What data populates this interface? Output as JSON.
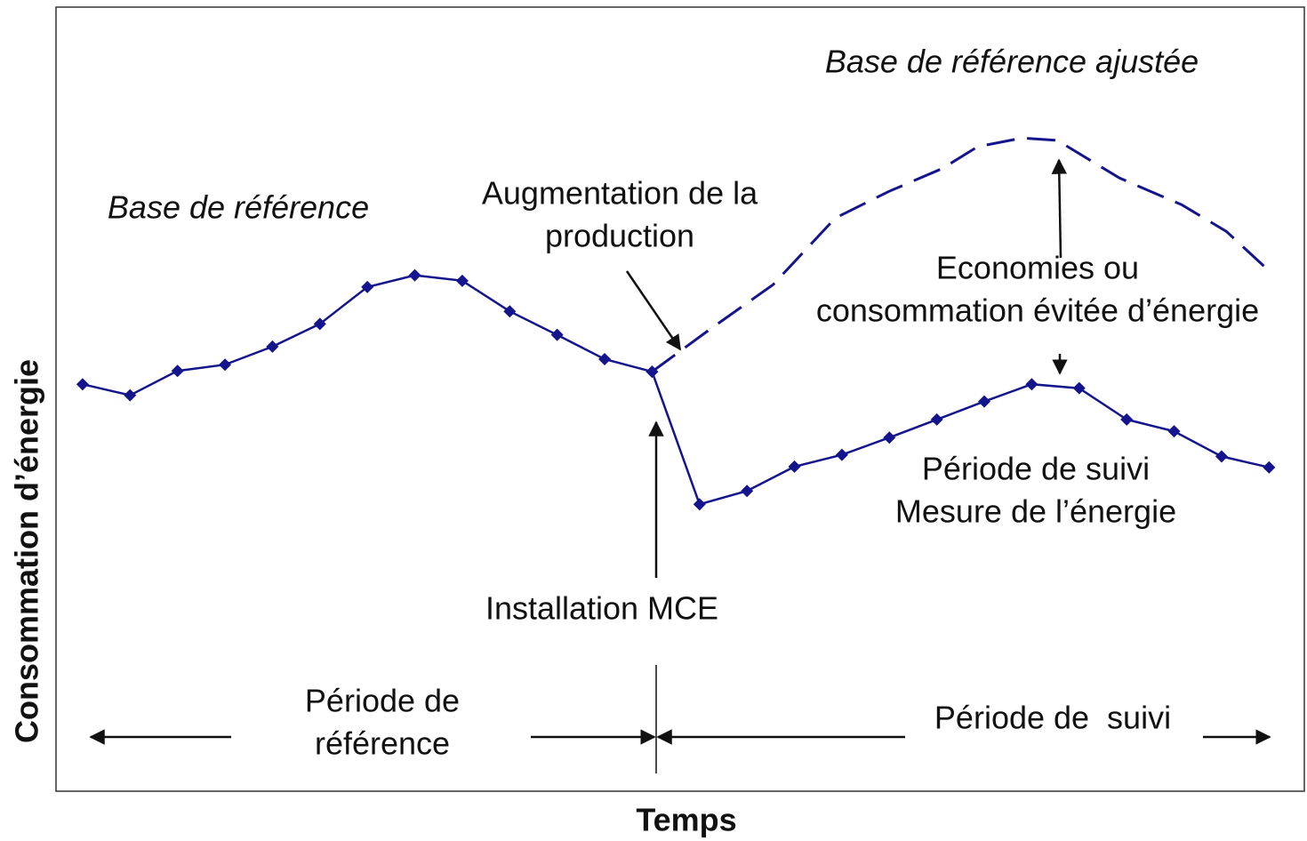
{
  "chart_data": {
    "type": "line",
    "x_label": "Temps",
    "y_label": "Consommation d’énergie",
    "xlim": [
      -0.56,
      25.8
    ],
    "ylim": [
      0,
      100
    ],
    "series": [
      {
        "color": "#14148c",
        "style": "solid",
        "markers": true,
        "x": [
          0,
          1,
          2,
          3,
          4,
          5,
          6,
          7,
          8,
          9,
          10,
          11,
          12
        ],
        "values": [
          51.9,
          50.5,
          53.6,
          54.4,
          56.7,
          59.6,
          64.3,
          65.8,
          65.1,
          61.2,
          58.2,
          55.1,
          53.5
        ]
      },
      {
        "color": "#14148c",
        "style": "solid",
        "markers": true,
        "x": [
          12,
          13,
          14,
          15,
          16,
          17,
          18,
          19,
          20,
          21,
          22,
          23,
          24,
          25
        ],
        "values": [
          53.5,
          36.6,
          38.3,
          41.4,
          42.9,
          45.1,
          47.4,
          49.7,
          51.9,
          51.4,
          47.4,
          45.9,
          42.7,
          41.3
        ]
      },
      {
        "color": "#14148c",
        "style": "dashed",
        "markers": false,
        "x": [
          12,
          13.24,
          14.55,
          15.86,
          16.99,
          18.11,
          18.86,
          19.79,
          20.54,
          21.85,
          23.16,
          24.1,
          24.94
        ],
        "values": [
          53.5,
          59,
          64.6,
          73.1,
          76.5,
          79.4,
          82.2,
          83.3,
          83,
          78.2,
          74.8,
          71.4,
          66.7
        ]
      }
    ],
    "annotations": [
      {
        "lines": [
          "Base de référence ajustée"
        ],
        "italic": true
      },
      {
        "lines": [
          "Base de référence"
        ],
        "italic": true
      },
      {
        "lines": [
          "Augmentation de la",
          "production"
        ]
      },
      {
        "lines": [
          "Economies ou",
          "consommation évitée d’énergie"
        ]
      },
      {
        "lines": [
          "Période de suivi",
          "Mesure de l’énergie"
        ]
      },
      {
        "lines": [
          "Installation MCE"
        ]
      },
      {
        "lines": [
          "Période de",
          "référence"
        ]
      },
      {
        "lines": [
          "Période de  suivi"
        ]
      }
    ]
  }
}
